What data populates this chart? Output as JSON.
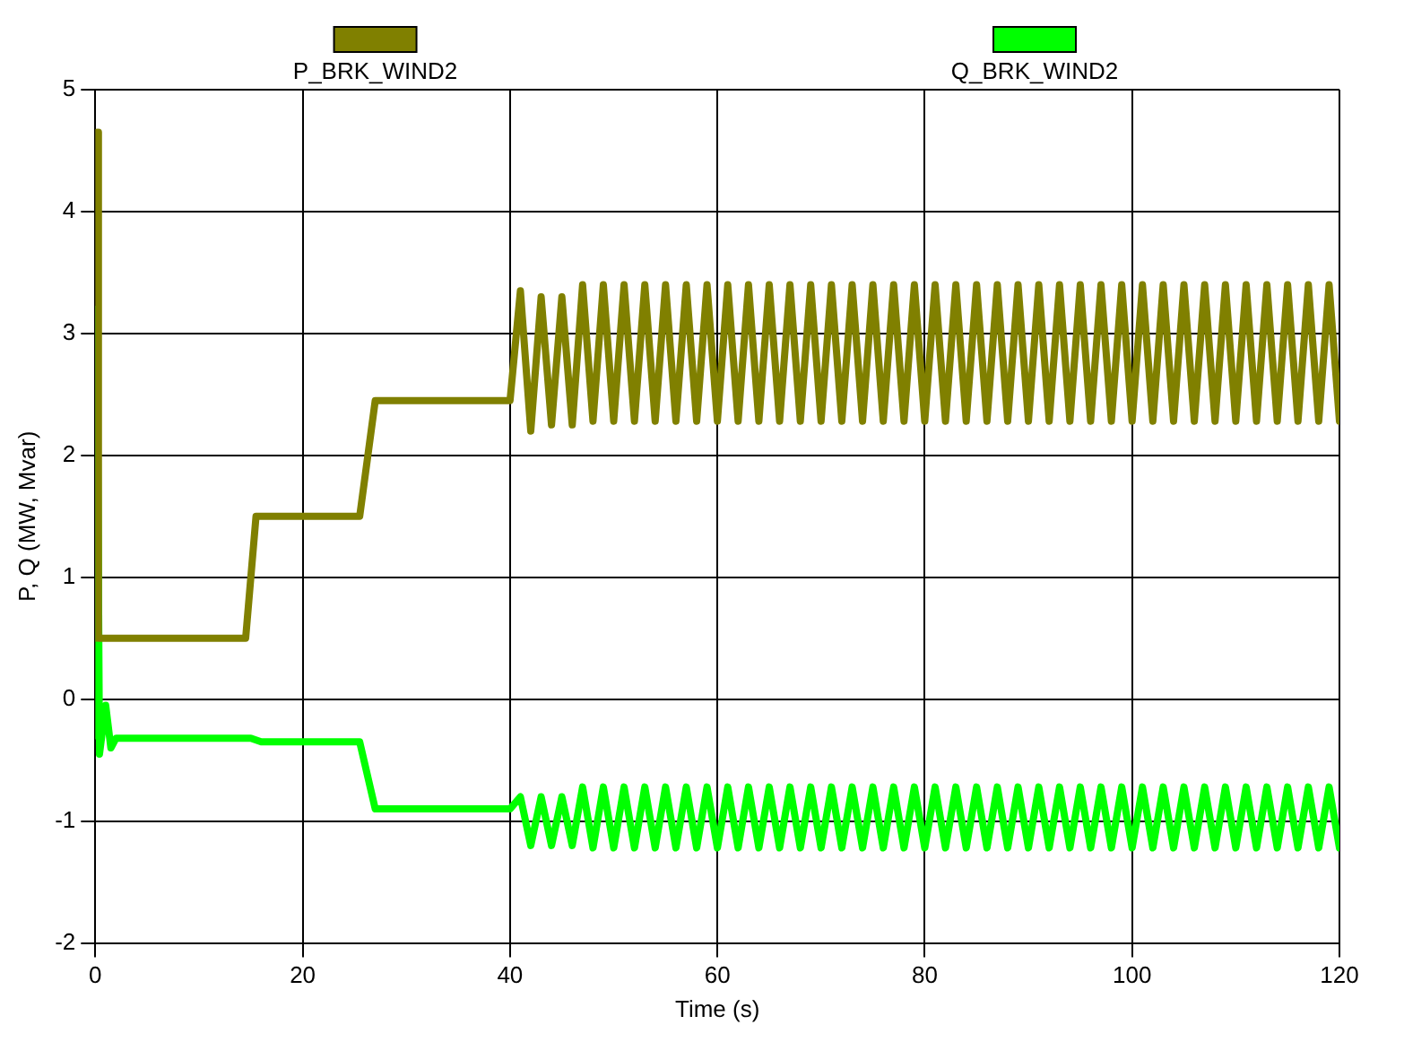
{
  "chart_data": {
    "type": "line",
    "xlabel": "Time (s)",
    "ylabel": "P, Q (MW, Mvar)",
    "xlim": [
      0,
      120
    ],
    "xticks": [
      0,
      20,
      40,
      60,
      80,
      100,
      120
    ],
    "ylim": [
      -2,
      5
    ],
    "yticks": [
      -2,
      -1,
      0,
      1,
      2,
      3,
      4,
      5
    ],
    "grid": true,
    "legend": "top",
    "marker": "none",
    "line_style": "solid",
    "series": [
      {
        "name": "P_BRK_WIND2",
        "color": "#808000",
        "x": [
          0,
          0.15,
          0.3,
          0.5,
          14.5,
          15.5,
          25.5,
          27,
          40,
          41,
          42,
          43,
          44,
          45,
          46,
          47,
          48,
          49,
          50,
          51,
          52,
          53,
          54,
          55,
          56,
          57,
          58,
          59,
          60,
          61,
          62,
          63,
          64,
          65,
          66,
          67,
          68,
          69,
          70,
          71,
          72,
          73,
          74,
          75,
          76,
          77,
          78,
          79,
          80,
          81,
          82,
          83,
          84,
          85,
          86,
          87,
          88,
          89,
          90,
          91,
          92,
          93,
          94,
          95,
          96,
          97,
          98,
          99,
          100,
          101,
          102,
          103,
          104,
          105,
          106,
          107,
          108,
          109,
          110,
          111,
          112,
          113,
          114,
          115,
          116,
          117,
          118,
          119,
          120
        ],
        "values": [
          0.5,
          4.65,
          0.5,
          0.5,
          0.5,
          1.5,
          1.5,
          2.45,
          2.45,
          3.35,
          2.2,
          3.3,
          2.25,
          3.3,
          2.25,
          3.4,
          2.28,
          3.4,
          2.28,
          3.4,
          2.28,
          3.4,
          2.28,
          3.4,
          2.28,
          3.4,
          2.28,
          3.4,
          2.28,
          3.4,
          2.28,
          3.4,
          2.28,
          3.4,
          2.28,
          3.4,
          2.28,
          3.4,
          2.28,
          3.4,
          2.28,
          3.4,
          2.28,
          3.4,
          2.28,
          3.4,
          2.28,
          3.4,
          2.28,
          3.4,
          2.28,
          3.4,
          2.28,
          3.4,
          2.28,
          3.4,
          2.28,
          3.4,
          2.28,
          3.4,
          2.28,
          3.4,
          2.28,
          3.4,
          2.28,
          3.4,
          2.28,
          3.4,
          2.28,
          3.4,
          2.28,
          3.4,
          2.28,
          3.4,
          2.28,
          3.4,
          2.28,
          3.4,
          2.28,
          3.4,
          2.28,
          3.4,
          2.28,
          3.4,
          2.28,
          3.4,
          2.28,
          3.4,
          2.28
        ]
      },
      {
        "name": "Q_BRK_WIND2",
        "color": "#00ff00",
        "x": [
          0,
          0.15,
          0.4,
          1,
          1.5,
          2,
          15,
          16,
          25.5,
          27,
          40,
          41,
          42,
          43,
          44,
          45,
          46,
          47,
          48,
          49,
          50,
          51,
          52,
          53,
          54,
          55,
          56,
          57,
          58,
          59,
          60,
          61,
          62,
          63,
          64,
          65,
          66,
          67,
          68,
          69,
          70,
          71,
          72,
          73,
          74,
          75,
          76,
          77,
          78,
          79,
          80,
          81,
          82,
          83,
          84,
          85,
          86,
          87,
          88,
          89,
          90,
          91,
          92,
          93,
          94,
          95,
          96,
          97,
          98,
          99,
          100,
          101,
          102,
          103,
          104,
          105,
          106,
          107,
          108,
          109,
          110,
          111,
          112,
          113,
          114,
          115,
          116,
          117,
          118,
          119,
          120
        ],
        "values": [
          -0.3,
          3.2,
          -0.45,
          -0.05,
          -0.4,
          -0.32,
          -0.32,
          -0.35,
          -0.35,
          -0.9,
          -0.9,
          -0.8,
          -1.2,
          -0.8,
          -1.2,
          -0.8,
          -1.2,
          -0.72,
          -1.22,
          -0.72,
          -1.22,
          -0.72,
          -1.22,
          -0.72,
          -1.22,
          -0.72,
          -1.22,
          -0.72,
          -1.22,
          -0.72,
          -1.22,
          -0.72,
          -1.22,
          -0.72,
          -1.22,
          -0.72,
          -1.22,
          -0.72,
          -1.22,
          -0.72,
          -1.22,
          -0.72,
          -1.22,
          -0.72,
          -1.22,
          -0.72,
          -1.22,
          -0.72,
          -1.22,
          -0.72,
          -1.22,
          -0.72,
          -1.22,
          -0.72,
          -1.22,
          -0.72,
          -1.22,
          -0.72,
          -1.22,
          -0.72,
          -1.22,
          -0.72,
          -1.22,
          -0.72,
          -1.22,
          -0.72,
          -1.22,
          -0.72,
          -1.22,
          -0.72,
          -1.22,
          -0.72,
          -1.22,
          -0.72,
          -1.22,
          -0.72,
          -1.22,
          -0.72,
          -1.22,
          -0.72,
          -1.22,
          -0.72,
          -1.22,
          -0.72,
          -1.22,
          -0.72,
          -1.22,
          -0.72,
          -1.22,
          -0.72,
          -1.22
        ]
      }
    ]
  }
}
